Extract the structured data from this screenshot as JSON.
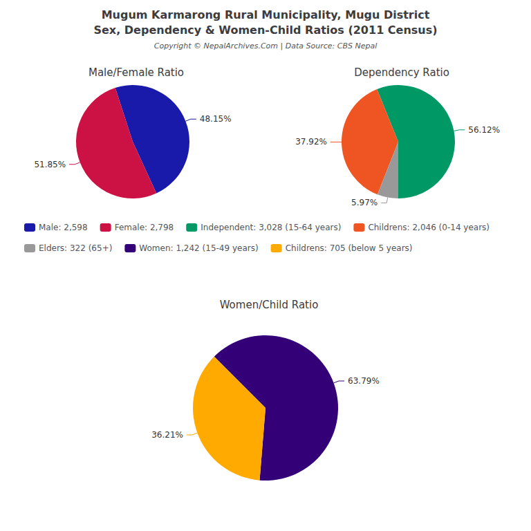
{
  "title": "Mugum Karmarong Rural Municipality, Mugu District",
  "subtitle": "Sex, Dependency & Women-Child Ratios (2011 Census)",
  "annotations": [
    "Copyright © NepalArchives.Com | Data Source: CBS Nepal"
  ],
  "legend": "center",
  "chart_data": [
    {
      "type": "pie",
      "title": "Male/Female Ratio",
      "categories": [
        "Male: 2,598",
        "Female: 2,798"
      ],
      "values": [
        48.15,
        51.85
      ],
      "value_labels": [
        "48.15%",
        "51.85%"
      ],
      "colors": [
        "#1a1aaa",
        "#cc1144"
      ],
      "data_labels": true
    },
    {
      "type": "pie",
      "title": "Dependency Ratio",
      "categories": [
        "Independent: 3,028 (15-64 years)",
        "Childrens: 2,046 (0-14 years)",
        "Elders: 322 (65+)"
      ],
      "values": [
        56.12,
        37.92,
        5.97
      ],
      "value_labels": [
        "56.12%",
        "37.92%",
        "5.97%"
      ],
      "colors": [
        "#009966",
        "#ee5522",
        "#999999"
      ],
      "data_labels": true
    },
    {
      "type": "pie",
      "title": "Women/Child Ratio",
      "categories": [
        "Women: 1,242 (15-49 years)",
        "Childrens: 705 (below 5 years)"
      ],
      "values": [
        63.79,
        36.21
      ],
      "value_labels": [
        "63.79%",
        "36.21%"
      ],
      "colors": [
        "#330077",
        "#ffaa00"
      ],
      "data_labels": true
    }
  ]
}
